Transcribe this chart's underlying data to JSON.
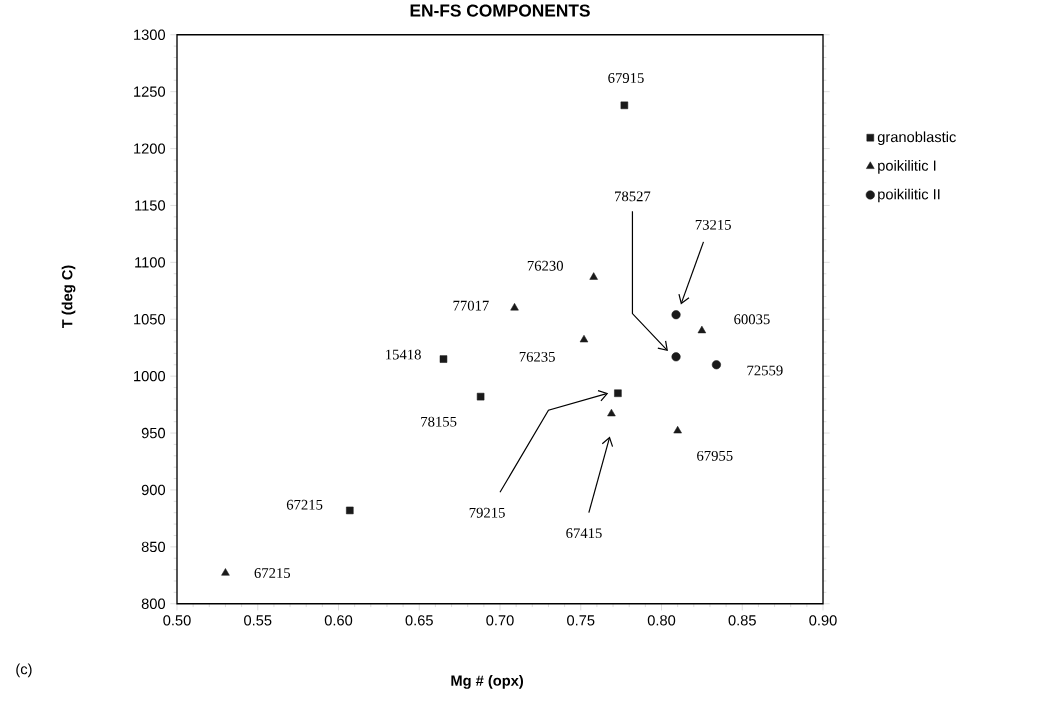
{
  "chart_data": {
    "type": "scatter",
    "title": "EN-FS COMPONENTS",
    "xlabel": "Mg # (opx)",
    "ylabel": "T (deg C)",
    "series": [
      {
        "name": "granoblastic",
        "color": "#1a1a1a",
        "marker": "square",
        "x": [
          0.777,
          0.665,
          0.688,
          0.773,
          0.607
        ],
        "values": [
          1238,
          1015,
          982,
          985,
          882
        ]
      },
      {
        "name": "poikilitic I",
        "color": "#1a1a1a",
        "marker": "triangle",
        "x": [
          0.758,
          0.709,
          0.752,
          0.825,
          0.769,
          0.81,
          0.53
        ],
        "values": [
          1087,
          1060,
          1032,
          1040,
          967,
          952,
          827
        ]
      },
      {
        "name": "poikilitic II",
        "color": "#1a1a1a",
        "marker": "circle",
        "x": [
          0.809,
          0.809,
          0.834
        ],
        "values": [
          1054,
          1017,
          1010
        ]
      }
    ],
    "xlim": [
      0.5,
      0.9
    ],
    "ylim": [
      800,
      1300
    ],
    "xticks": [
      {
        "value": 0.5,
        "label": "0.50"
      },
      {
        "value": 0.55,
        "label": "0.55"
      },
      {
        "value": 0.6,
        "label": "0.60"
      },
      {
        "value": 0.65,
        "label": "0.65"
      },
      {
        "value": 0.7,
        "label": "0.70"
      },
      {
        "value": 0.75,
        "label": "0.75"
      },
      {
        "value": 0.8,
        "label": "0.80"
      },
      {
        "value": 0.85,
        "label": "0.85"
      },
      {
        "value": 0.9,
        "label": "0.90"
      }
    ],
    "yticks": [
      800,
      850,
      900,
      950,
      1000,
      1050,
      1100,
      1150,
      1200,
      1250,
      1300
    ],
    "legend": "right",
    "grid": false,
    "annotations": [
      {
        "text": "67915",
        "x": 0.777,
        "y": 1238
      },
      "78527",
      "73215",
      {
        "text": "76230",
        "x": 0.758,
        "y": 1087
      },
      {
        "text": "77017",
        "x": 0.709,
        "y": 1060
      },
      {
        "text": "60035",
        "x": 0.825,
        "y": 1040
      },
      {
        "text": "76235",
        "x": 0.752,
        "y": 1032
      },
      {
        "text": "15418",
        "x": 0.665,
        "y": 1015
      },
      {
        "text": "72559",
        "x": 0.834,
        "y": 1010
      },
      {
        "text": "78155",
        "x": 0.688,
        "y": 982
      },
      "79215",
      "67415",
      {
        "text": "67955",
        "x": 0.81,
        "y": 952
      },
      {
        "text": "67215",
        "x": 0.607,
        "y": 882
      },
      {
        "text": "67215",
        "x": 0.53,
        "y": 827
      },
      "(c)"
    ]
  }
}
